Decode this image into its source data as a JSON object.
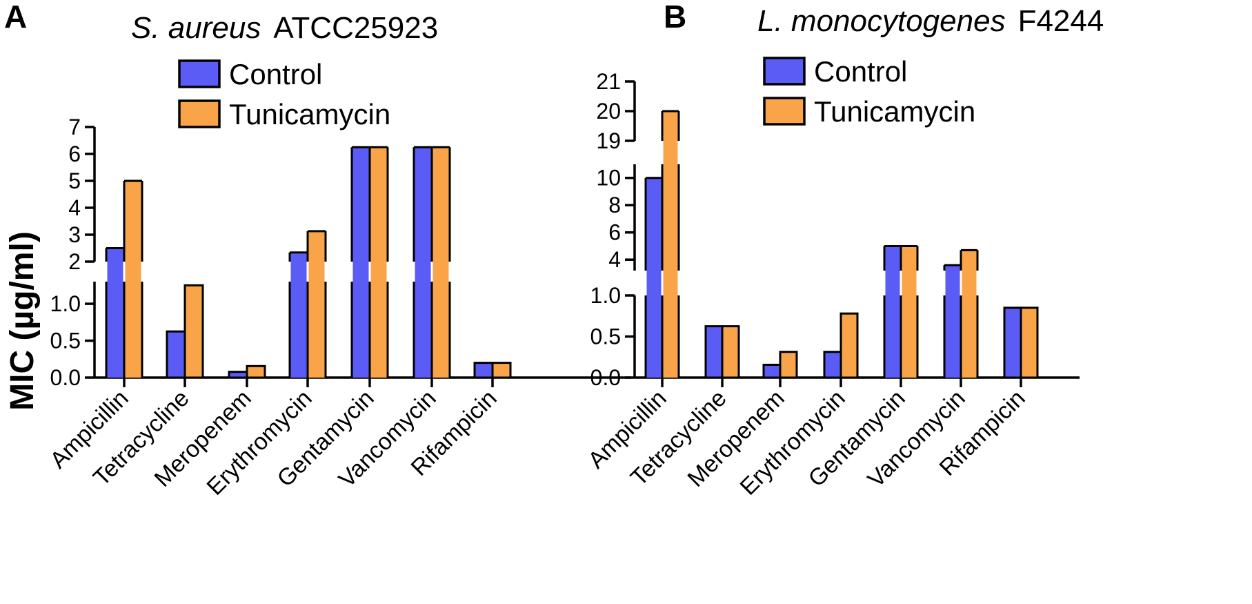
{
  "chart_data": [
    {
      "panel": "A",
      "type": "bar",
      "title_organism": "S. aureus",
      "title_strain": "ATCC25923",
      "ylabel": "MIC (µg/ml)",
      "categories": [
        "Ampicillin",
        "Tetracycline",
        "Meropenem",
        "Erythromycin",
        "Gentamycin",
        "Vancomycin",
        "Rifampicin"
      ],
      "series": [
        {
          "name": "Control",
          "color": "#5b5bf5",
          "values": [
            2.5,
            0.625,
            0.078,
            2.34,
            6.25,
            6.25,
            0.2
          ]
        },
        {
          "name": "Tunicamycin",
          "color": "#f9a449",
          "values": [
            5.0,
            1.25,
            0.156,
            3.13,
            6.25,
            6.25,
            0.2
          ]
        }
      ],
      "y_segments": [
        {
          "range": [
            0,
            1.3
          ],
          "ticks": [
            0.0,
            0.5,
            1.0
          ],
          "tick_labels": [
            "0.0",
            "0.5",
            "1.0"
          ]
        },
        {
          "range": [
            2,
            7
          ],
          "ticks": [
            2,
            3,
            4,
            5,
            6,
            7
          ],
          "tick_labels": [
            "2",
            "3",
            "4",
            "5",
            "6",
            "7"
          ]
        }
      ],
      "legend": [
        "Control",
        "Tunicamycin"
      ]
    },
    {
      "panel": "B",
      "type": "bar",
      "title_organism": "L. monocytogenes",
      "title_strain": "F4244",
      "ylabel": "",
      "categories": [
        "Ampicillin",
        "Tetracycline",
        "Meropenem",
        "Erythromycin",
        "Gentamycin",
        "Vancomycin",
        "Rifampicin"
      ],
      "series": [
        {
          "name": "Control",
          "color": "#5b5bf5",
          "values": [
            10,
            0.625,
            0.156,
            0.313,
            5.0,
            3.6,
            0.85
          ]
        },
        {
          "name": "Tunicamycin",
          "color": "#f9a449",
          "values": [
            20,
            0.625,
            0.313,
            0.78,
            5.0,
            4.7,
            0.85
          ]
        }
      ],
      "y_segments": [
        {
          "range": [
            0,
            1.0
          ],
          "ticks": [
            0.0,
            0.5,
            1.0
          ],
          "tick_labels": [
            "0.0",
            "0.5",
            "1.0"
          ]
        },
        {
          "range": [
            3.2,
            11
          ],
          "ticks": [
            4,
            6,
            8,
            10
          ],
          "tick_labels": [
            "4",
            "6",
            "8",
            "10"
          ]
        },
        {
          "range": [
            19,
            21
          ],
          "ticks": [
            19,
            20,
            21
          ],
          "tick_labels": [
            "19",
            "20",
            "21"
          ]
        }
      ],
      "legend": [
        "Control",
        "Tunicamycin"
      ]
    }
  ]
}
